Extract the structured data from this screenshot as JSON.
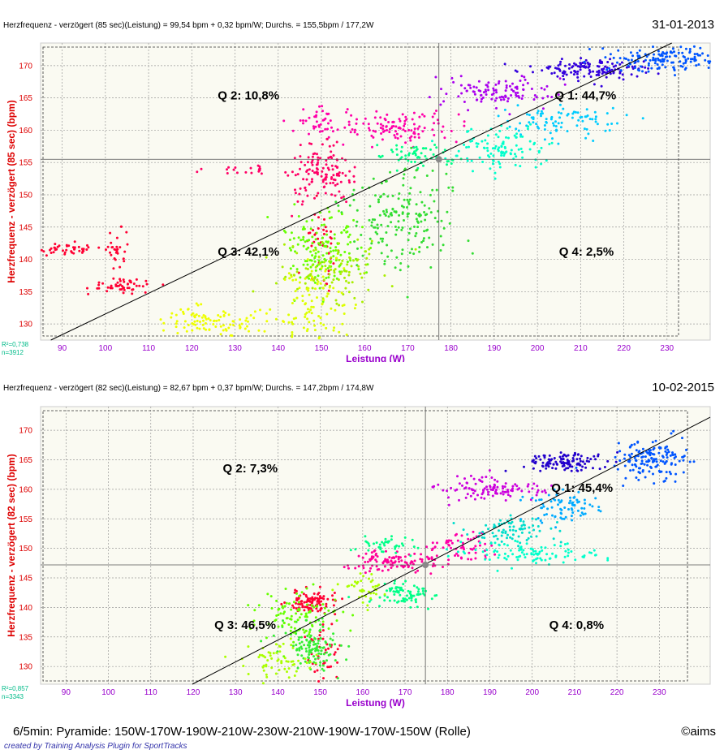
{
  "chart_data": [
    {
      "type": "scatter",
      "title": "Herzfrequenz - verzögert (85 sec)(Leistung) = 99,54 bpm + 0,32 bpm/W; Durchs. = 155,5bpm / 177,2W",
      "date": "31-01-2013",
      "xlabel": "Leistung (W)",
      "ylabel": "Herzfrequenz - verzögert (85 sec) (bpm)",
      "xlim": [
        85,
        240
      ],
      "ylim": [
        127.5,
        173.5
      ],
      "xticks": [
        90,
        100,
        110,
        120,
        130,
        140,
        150,
        160,
        170,
        180,
        190,
        200,
        210,
        220,
        230
      ],
      "yticks": [
        130,
        135,
        140,
        145,
        150,
        155,
        160,
        165,
        170
      ],
      "grid": true,
      "regression": {
        "intercept": 99.54,
        "slope": 0.32
      },
      "mean": {
        "x": 177.2,
        "y": 155.5
      },
      "stats": [
        "R²=0,738",
        "n=3912"
      ],
      "quadrants": [
        {
          "label": "Q 2: 10,8%",
          "x": 126,
          "y": 165.5
        },
        {
          "label": "Q 1: 44,7%",
          "x": 204,
          "y": 165.5
        },
        {
          "label": "Q 3: 42,1%",
          "x": 126,
          "y": 141.3
        },
        {
          "label": "Q 4: 2,5%",
          "x": 205,
          "y": 141.3
        }
      ],
      "clusters": [
        {
          "color": "#ff0033",
          "cx": 91,
          "cy": 141.5,
          "sx": 4,
          "sy": 0.5,
          "n": 40
        },
        {
          "color": "#ff0033",
          "cx": 104,
          "cy": 136,
          "sx": 4,
          "sy": 0.5,
          "n": 50
        },
        {
          "color": "#ff0033",
          "cx": 103,
          "cy": 141,
          "sx": 1.2,
          "sy": 2,
          "n": 30
        },
        {
          "color": "#ff0033",
          "cx": 150,
          "cy": 143,
          "sx": 2,
          "sy": 2.5,
          "n": 40
        },
        {
          "color": "#ff0066",
          "cx": 150,
          "cy": 153,
          "sx": 3.5,
          "sy": 2.2,
          "n": 130
        },
        {
          "color": "#ff0066",
          "cx": 135,
          "cy": 153.8,
          "sx": 8,
          "sy": 0.4,
          "n": 20
        },
        {
          "color": "#ff00aa",
          "cx": 168,
          "cy": 160.5,
          "sx": 7,
          "sy": 1.2,
          "n": 110
        },
        {
          "color": "#ff00aa",
          "cx": 150,
          "cy": 161.5,
          "sx": 4,
          "sy": 1,
          "n": 40
        },
        {
          "color": "#aa00ee",
          "cx": 190,
          "cy": 166,
          "sx": 7,
          "sy": 1.2,
          "n": 110
        },
        {
          "color": "#3300dd",
          "cx": 213,
          "cy": 169.5,
          "sx": 7,
          "sy": 0.8,
          "n": 140
        },
        {
          "color": "#0055ff",
          "cx": 230,
          "cy": 171,
          "sx": 6,
          "sy": 1,
          "n": 140
        },
        {
          "color": "#00ccff",
          "cx": 207,
          "cy": 161.5,
          "sx": 7,
          "sy": 1.5,
          "n": 90
        },
        {
          "color": "#00ffcc",
          "cx": 192,
          "cy": 157,
          "sx": 6,
          "sy": 1.5,
          "n": 110
        },
        {
          "color": "#00ff88",
          "cx": 172,
          "cy": 156,
          "sx": 4,
          "sy": 1,
          "n": 60
        },
        {
          "color": "#33dd33",
          "cx": 168,
          "cy": 147,
          "sx": 7,
          "sy": 4,
          "n": 180
        },
        {
          "color": "#66ff00",
          "cx": 151,
          "cy": 141.5,
          "sx": 5,
          "sy": 3,
          "n": 150
        },
        {
          "color": "#aaee00",
          "cx": 153,
          "cy": 138,
          "sx": 6,
          "sy": 2.5,
          "n": 100
        },
        {
          "color": "#ddff00",
          "cx": 148,
          "cy": 133,
          "sx": 4,
          "sy": 3,
          "n": 100
        },
        {
          "color": "#eeff00",
          "cx": 126,
          "cy": 130,
          "sx": 7,
          "sy": 1,
          "n": 80
        },
        {
          "color": "#eeff00",
          "cx": 120,
          "cy": 132,
          "sx": 2,
          "sy": 1,
          "n": 20
        }
      ]
    },
    {
      "type": "scatter",
      "title": "Herzfrequenz - verzögert (82 sec)(Leistung) = 82,67 bpm + 0,37 bpm/W; Durchs. = 147,2bpm / 174,8W",
      "date": "10-02-2015",
      "xlabel": "Leistung (W)",
      "ylabel": "Herzfrequenz - verzögert (82 sec) (bpm)",
      "xlim": [
        84,
        242
      ],
      "ylim": [
        127,
        174
      ],
      "xticks": [
        90,
        100,
        110,
        120,
        130,
        140,
        150,
        160,
        170,
        180,
        190,
        200,
        210,
        220,
        230
      ],
      "yticks": [
        130,
        135,
        140,
        145,
        150,
        155,
        160,
        165,
        170
      ],
      "grid": true,
      "regression": {
        "intercept": 82.67,
        "slope": 0.37
      },
      "mean": {
        "x": 174.8,
        "y": 147.2
      },
      "stats": [
        "R²=0,857",
        "n=3343"
      ],
      "quadrants": [
        {
          "label": "Q 2: 7,3%",
          "x": 127,
          "y": 163.7
        },
        {
          "label": "Q 1: 45,4%",
          "x": 204.5,
          "y": 160.4
        },
        {
          "label": "Q 3: 46,5%",
          "x": 125,
          "y": 137.2
        },
        {
          "label": "Q 4: 0,8%",
          "x": 204,
          "y": 137.2
        }
      ],
      "clusters": [
        {
          "color": "#ff0033",
          "cx": 148,
          "cy": 140.8,
          "sx": 3,
          "sy": 1,
          "n": 100
        },
        {
          "color": "#ff0033",
          "cx": 151,
          "cy": 132,
          "sx": 2,
          "sy": 2.5,
          "n": 40
        },
        {
          "color": "#ff0099",
          "cx": 168,
          "cy": 147.8,
          "sx": 5,
          "sy": 1,
          "n": 110
        },
        {
          "color": "#cc00dd",
          "cx": 190,
          "cy": 160,
          "sx": 6,
          "sy": 1,
          "n": 110
        },
        {
          "color": "#ff00aa",
          "cx": 183,
          "cy": 150,
          "sx": 4,
          "sy": 1.3,
          "n": 60
        },
        {
          "color": "#2200cc",
          "cx": 208,
          "cy": 164.7,
          "sx": 5,
          "sy": 0.8,
          "n": 120
        },
        {
          "color": "#0055ff",
          "cx": 228,
          "cy": 165,
          "sx": 4,
          "sy": 1.5,
          "n": 150
        },
        {
          "color": "#00aaff",
          "cx": 208,
          "cy": 157,
          "sx": 5,
          "sy": 1.2,
          "n": 80
        },
        {
          "color": "#00ddcc",
          "cx": 194,
          "cy": 153,
          "sx": 5,
          "sy": 1.2,
          "n": 80
        },
        {
          "color": "#00ffcc",
          "cx": 198,
          "cy": 149,
          "sx": 8,
          "sy": 1,
          "n": 100
        },
        {
          "color": "#00ff88",
          "cx": 170,
          "cy": 142,
          "sx": 4,
          "sy": 1,
          "n": 80
        },
        {
          "color": "#00ff88",
          "cx": 166,
          "cy": 150.5,
          "sx": 4,
          "sy": 0.8,
          "n": 40
        },
        {
          "color": "#33ee33",
          "cx": 148,
          "cy": 133.5,
          "sx": 3,
          "sy": 2,
          "n": 120
        },
        {
          "color": "#66ff00",
          "cx": 145,
          "cy": 139,
          "sx": 5,
          "sy": 2.5,
          "n": 100
        },
        {
          "color": "#aaff00",
          "cx": 140,
          "cy": 131,
          "sx": 4,
          "sy": 1.5,
          "n": 60
        },
        {
          "color": "#aaff00",
          "cx": 160,
          "cy": 143,
          "sx": 3,
          "sy": 1.5,
          "n": 40
        }
      ]
    }
  ],
  "footer": {
    "description": "6/5min: Pyramide: 150W-170W-190W-210W-230W-210W-190W-170W-150W  (Rolle)",
    "copyright": "©aims",
    "credit": "created by Training Analysis Plugin for SportTracks"
  }
}
